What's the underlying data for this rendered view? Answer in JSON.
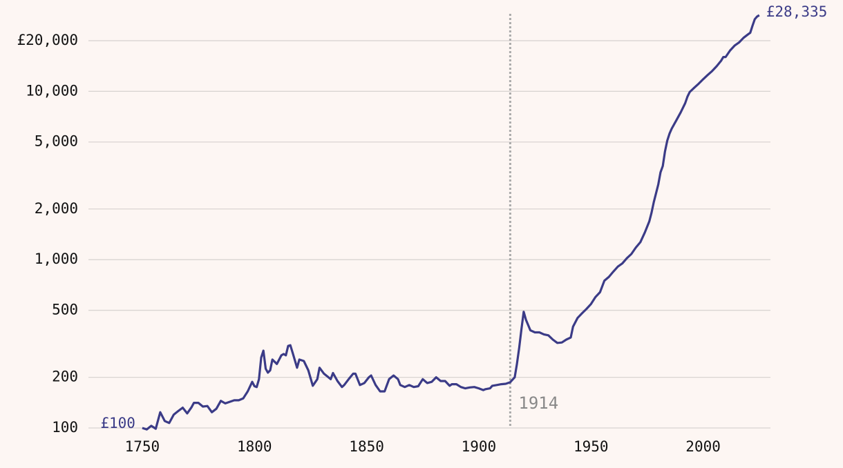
{
  "chart_data": {
    "type": "line",
    "log_scale": true,
    "grid": true,
    "color": "#3b3b87",
    "start_label": "£100",
    "end_label": "£28,335",
    "annotations": [
      {
        "x": 1914,
        "label": "1914"
      }
    ],
    "xlim": [
      1726,
      2030
    ],
    "xticks": [
      1750,
      1800,
      1850,
      1900,
      1950,
      2000
    ],
    "ylim": [
      100,
      30000
    ],
    "yticks": [
      100,
      200,
      500,
      {
        "value": 1000,
        "label": "1,000"
      },
      {
        "value": 2000,
        "label": "2,000"
      },
      {
        "value": 5000,
        "label": "5,000"
      },
      {
        "value": 10000,
        "label": "10,000"
      },
      {
        "value": 20000,
        "label": "£20,000"
      }
    ],
    "x": [
      1750,
      1752,
      1754,
      1756,
      1758,
      1760,
      1762,
      1764,
      1766,
      1768,
      1770,
      1772,
      1773,
      1775,
      1777,
      1779,
      1781,
      1783,
      1785,
      1787,
      1789,
      1791,
      1793,
      1795,
      1797,
      1799,
      1800,
      1801,
      1802,
      1803,
      1804,
      1805,
      1806,
      1807,
      1808,
      1810,
      1812,
      1813,
      1814,
      1815,
      1816,
      1817,
      1819,
      1820,
      1822,
      1824,
      1826,
      1828,
      1829,
      1831,
      1833,
      1834,
      1835,
      1837,
      1839,
      1840,
      1842,
      1844,
      1845,
      1847,
      1849,
      1851,
      1852,
      1854,
      1856,
      1858,
      1860,
      1862,
      1864,
      1865,
      1867,
      1869,
      1871,
      1873,
      1875,
      1877,
      1879,
      1881,
      1883,
      1885,
      1887,
      1888,
      1890,
      1892,
      1894,
      1896,
      1898,
      1900,
      1902,
      1903,
      1905,
      1906,
      1908,
      1910,
      1912,
      1914,
      1916,
      1917,
      1918,
      1919,
      1920,
      1921,
      1923,
      1925,
      1927,
      1929,
      1931,
      1933,
      1935,
      1937,
      1939,
      1941,
      1942,
      1944,
      1946,
      1948,
      1950,
      1952,
      1954,
      1956,
      1958,
      1960,
      1962,
      1964,
      1966,
      1968,
      1970,
      1972,
      1974,
      1976,
      1977,
      1978,
      1980,
      1981,
      1982,
      1983,
      1984,
      1985,
      1986,
      1988,
      1990,
      1992,
      1993,
      1994,
      1996,
      1998,
      2000,
      2002,
      2004,
      2006,
      2008,
      2009,
      2010,
      2012,
      2014,
      2016,
      2018,
      2020,
      2021,
      2022,
      2023,
      2024,
      2025
    ],
    "values": [
      100,
      98,
      103,
      99,
      124,
      110,
      107,
      120,
      126,
      132,
      122,
      133,
      141,
      141,
      134,
      135,
      124,
      130,
      145,
      140,
      143,
      146,
      146,
      150,
      165,
      188,
      177,
      175,
      195,
      262,
      288,
      225,
      213,
      220,
      255,
      240,
      270,
      275,
      270,
      307,
      310,
      280,
      228,
      255,
      250,
      220,
      178,
      195,
      228,
      210,
      200,
      195,
      212,
      190,
      175,
      180,
      195,
      210,
      210,
      180,
      185,
      200,
      205,
      180,
      165,
      165,
      195,
      205,
      195,
      180,
      175,
      180,
      175,
      177,
      195,
      185,
      188,
      200,
      190,
      190,
      178,
      182,
      182,
      175,
      172,
      174,
      175,
      172,
      168,
      170,
      172,
      178,
      180,
      182,
      183,
      187,
      200,
      240,
      300,
      385,
      490,
      440,
      380,
      370,
      370,
      360,
      355,
      335,
      320,
      322,
      335,
      345,
      400,
      450,
      480,
      510,
      545,
      600,
      640,
      750,
      790,
      850,
      910,
      950,
      1020,
      1080,
      1180,
      1270,
      1450,
      1690,
      1900,
      2200,
      2800,
      3300,
      3600,
      4400,
      5100,
      5600,
      6000,
      6700,
      7500,
      8500,
      9300,
      9900,
      10500,
      11100,
      11800,
      12500,
      13200,
      14100,
      15200,
      16000,
      16000,
      17500,
      18700,
      19500,
      20800,
      21800,
      22300,
      24500,
      26800,
      27800,
      28335
    ]
  }
}
